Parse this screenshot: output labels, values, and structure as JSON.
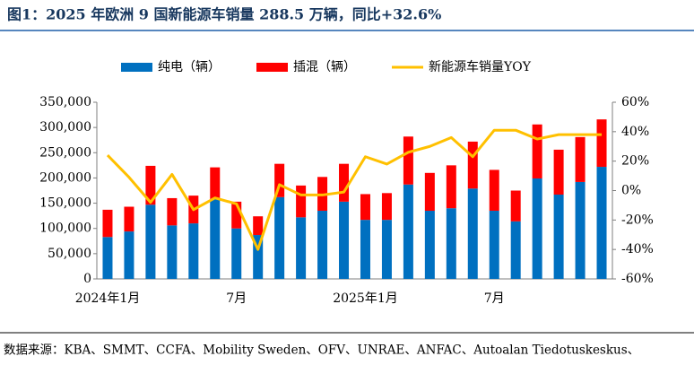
{
  "chart_data": {
    "type": "bar",
    "title": "图1：2025 年欧洲 9 国新能源车销量 288.5 万辆，同比+32.6%",
    "source": "数据来源：KBA、SMMT、CCFA、Mobility Sweden、OFV、UNRAE、ANFAC、Autoalan Tiedotuskeskus、",
    "stacked": true,
    "categories": [
      "2024年1月",
      null,
      null,
      null,
      null,
      null,
      "7月",
      null,
      null,
      null,
      null,
      null,
      "2025年1月",
      null,
      null,
      null,
      null,
      null,
      "7月",
      null,
      null,
      null,
      null,
      null
    ],
    "series": [
      {
        "name": "纯电（辆）",
        "type": "bar",
        "color": "#0070c0",
        "values": [
          83000,
          94000,
          147000,
          106000,
          110000,
          158000,
          100000,
          87000,
          162000,
          122000,
          135000,
          153000,
          117000,
          117000,
          187000,
          135000,
          140000,
          179000,
          135000,
          114000,
          199000,
          167000,
          192000,
          222000
        ]
      },
      {
        "name": "插混（辆）",
        "type": "bar",
        "color": "#ff0000",
        "values": [
          54000,
          49000,
          77000,
          54000,
          55000,
          63000,
          53000,
          37000,
          66000,
          63000,
          67000,
          75000,
          51000,
          53000,
          95000,
          75000,
          85000,
          93000,
          81000,
          61000,
          107000,
          89000,
          89000,
          94000
        ]
      },
      {
        "name": "新能源车销量YOY",
        "type": "line",
        "axis": "y2",
        "color": "#ffc000",
        "values": [
          24,
          9,
          -8,
          11,
          -13,
          -5,
          -9,
          -40,
          4,
          -3,
          -3,
          -1,
          23,
          18,
          26,
          30,
          36,
          23,
          41,
          41,
          35,
          38,
          38,
          38
        ]
      }
    ],
    "ylim": [
      0,
      350000
    ],
    "yticks": [
      0,
      {
        "value": 50000,
        "label": "50,000"
      },
      {
        "value": 100000,
        "label": "100,000"
      },
      {
        "value": 150000,
        "label": "150,000"
      },
      {
        "value": 200000,
        "label": "200,000"
      },
      {
        "value": 250000,
        "label": "250,000"
      },
      {
        "value": 300000,
        "label": "300,000"
      },
      {
        "value": 350000,
        "label": "350,000"
      }
    ],
    "y2lim": [
      -60,
      60
    ],
    "y2ticks": [
      {
        "value": -60,
        "label": "-60%"
      },
      {
        "value": -40,
        "label": "-40%"
      },
      {
        "value": -20,
        "label": "-20%"
      },
      {
        "value": 0,
        "label": "0%"
      },
      {
        "value": 20,
        "label": "20%"
      },
      {
        "value": 40,
        "label": "40%"
      },
      {
        "value": 60,
        "label": "60%"
      }
    ]
  }
}
